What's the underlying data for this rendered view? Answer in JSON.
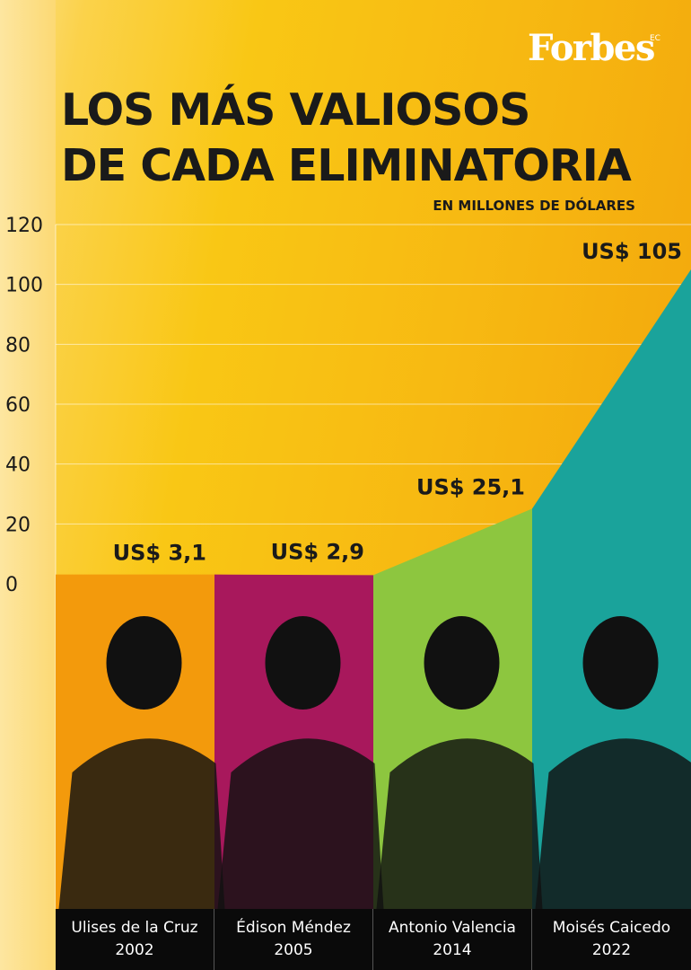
{
  "brand": {
    "logo": "Forbes",
    "logo_sup": "EC"
  },
  "header": {
    "title_line1": "LOS MÁS VALIOSOS",
    "title_line2": "DE CADA ELIMINATORIA",
    "subtitle": "EN MILLONES DE DÓLARES"
  },
  "colors": {
    "background": "#f9c715",
    "ulises": "#f39a0c",
    "edison": "#a8185c",
    "antonio": "#8dc63f",
    "moises": "#1aa39b",
    "footer": "#0a0a0a"
  },
  "chart_data": {
    "type": "area",
    "title": "LOS MÁS VALIOSOS DE CADA ELIMINATORIA",
    "ylabel": "EN MILLONES DE DÓLARES",
    "ylim": [
      0,
      120
    ],
    "yticks": [
      0,
      20,
      40,
      60,
      80,
      100,
      120
    ],
    "grid": true,
    "categories": [
      "Ulises de la Cruz",
      "Édison Méndez",
      "Antonio Valencia",
      "Moisés Caicedo"
    ],
    "years": [
      "2002",
      "2005",
      "2014",
      "2022"
    ],
    "values": [
      3.1,
      2.9,
      25.1,
      105
    ],
    "value_labels": [
      "US$ 3,1",
      "US$ 2,9",
      "US$ 25,1",
      "US$ 105"
    ],
    "series": [
      {
        "values": [
          3.1,
          2.9,
          25.1,
          105
        ]
      }
    ]
  }
}
